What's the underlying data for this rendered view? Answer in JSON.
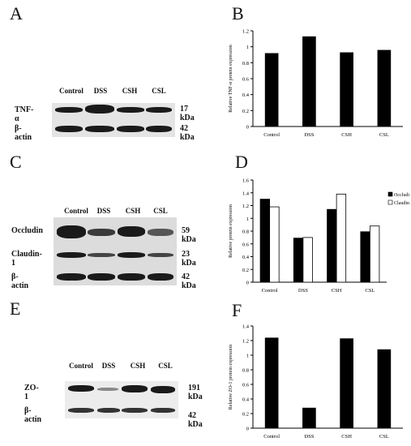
{
  "panels": {
    "a": "A",
    "b": "B",
    "c": "C",
    "d": "D",
    "e": "E",
    "f": "F"
  },
  "blot_a": {
    "lanes": [
      "Control",
      "DSS",
      "CSH",
      "CSL"
    ],
    "rows": [
      {
        "name": "TNF-α",
        "kda": "17 kDa"
      },
      {
        "name": "β-actin",
        "kda": "42 kDa"
      }
    ]
  },
  "blot_c": {
    "lanes": [
      "Control",
      "DSS",
      "CSH",
      "CSL"
    ],
    "rows": [
      {
        "name": "Occludin",
        "kda": "59 kDa"
      },
      {
        "name": "Claudin-1",
        "kda": "23 kDa"
      },
      {
        "name": "β-actin",
        "kda": "42 kDa"
      }
    ]
  },
  "blot_e": {
    "lanes": [
      "Control",
      "DSS",
      "CSH",
      "CSL"
    ],
    "rows": [
      {
        "name": "ZO-1",
        "kda": "191 kDa"
      },
      {
        "name": "β-actin",
        "kda": "42 kDa"
      }
    ]
  },
  "chart_data": [
    {
      "type": "bar",
      "panel": "B",
      "categories": [
        "Control",
        "DSS",
        "CSH",
        "CSL"
      ],
      "values": [
        0.92,
        1.13,
        0.93,
        0.96
      ],
      "ylabel": "Relative TNF-α protein expression",
      "ylim": [
        0,
        1.2
      ],
      "yticks": [
        "0",
        "0.2",
        "0.4",
        "0.6",
        "0.8",
        "1",
        "1.2"
      ],
      "grid": false,
      "bar_color": "#000000"
    },
    {
      "type": "bar",
      "panel": "D",
      "categories": [
        "Control",
        "DSS",
        "CSH",
        "CSL"
      ],
      "series": [
        {
          "name": "Occludin",
          "values": [
            1.3,
            0.69,
            1.14,
            0.79
          ],
          "color": "#000000"
        },
        {
          "name": "Claudin-1",
          "values": [
            1.18,
            0.7,
            1.38,
            0.88
          ],
          "color": "#ffffff"
        }
      ],
      "ylabel": "Relative protein expression",
      "ylim": [
        0,
        1.6
      ],
      "yticks": [
        "0",
        "0.2",
        "0.4",
        "0.6",
        "0.8",
        "1",
        "1.2",
        "1.4",
        "1.6"
      ],
      "legend": "top-right",
      "grid": false
    },
    {
      "type": "bar",
      "panel": "F",
      "categories": [
        "Control",
        "DSS",
        "CSH",
        "CSL"
      ],
      "values": [
        1.24,
        0.28,
        1.23,
        1.08
      ],
      "ylabel": "Relative ZO-1 protein expression",
      "ylim": [
        0,
        1.4
      ],
      "yticks": [
        "0",
        "0.2",
        "0.4",
        "0.6",
        "0.8",
        "1",
        "1.2",
        "1.4"
      ],
      "grid": false,
      "bar_color": "#000000"
    }
  ]
}
